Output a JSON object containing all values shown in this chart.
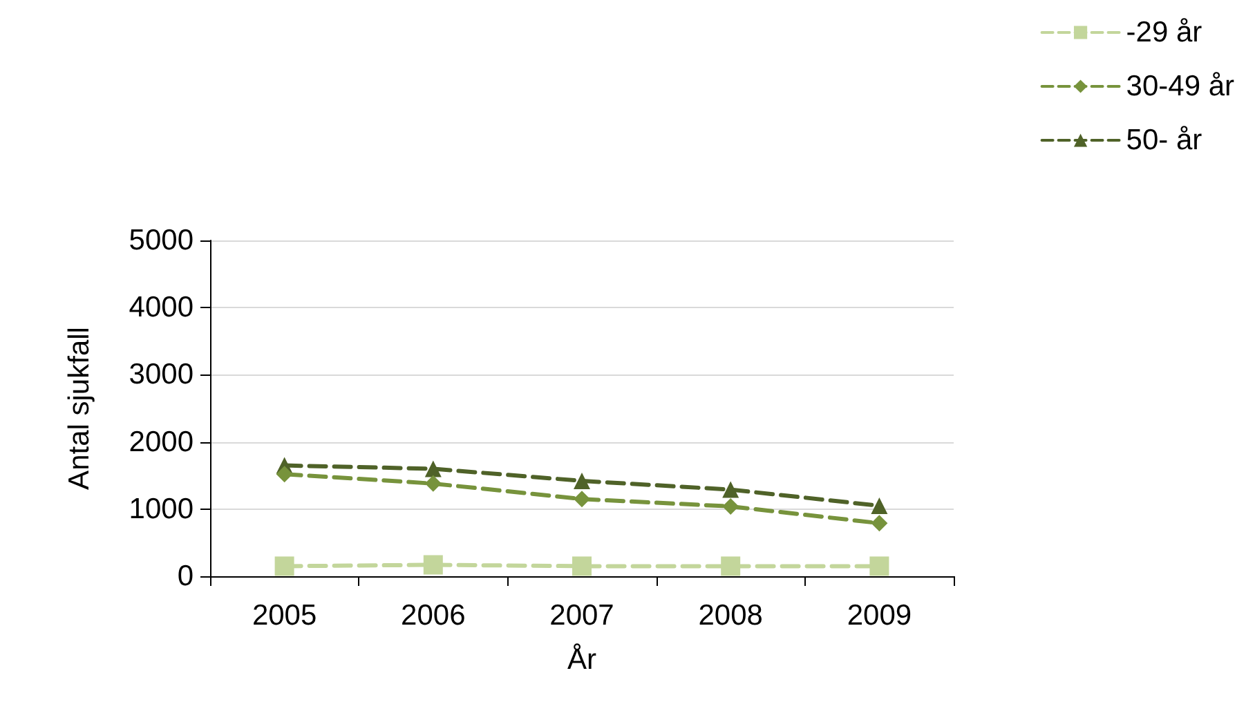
{
  "chart_data": {
    "type": "line",
    "xlabel": "År",
    "ylabel": "Antal sjukfall",
    "categories": [
      "2005",
      "2006",
      "2007",
      "2008",
      "2009"
    ],
    "series": [
      {
        "name": "-29 år",
        "color": "#c3d69b",
        "marker": "square",
        "values": [
          150,
          170,
          150,
          150,
          150
        ]
      },
      {
        "name": "30-49 år",
        "color": "#77933c",
        "marker": "diamond",
        "values": [
          1520,
          1380,
          1150,
          1040,
          790
        ]
      },
      {
        "name": "50- år",
        "color": "#4f6228",
        "marker": "triangle",
        "values": [
          1650,
          1600,
          1420,
          1290,
          1050
        ]
      }
    ],
    "ylim": [
      0,
      5000
    ],
    "yticks": [
      0,
      1000,
      2000,
      3000,
      4000,
      5000
    ],
    "grid": "y",
    "legend": "top right",
    "line_style": "dashed"
  }
}
